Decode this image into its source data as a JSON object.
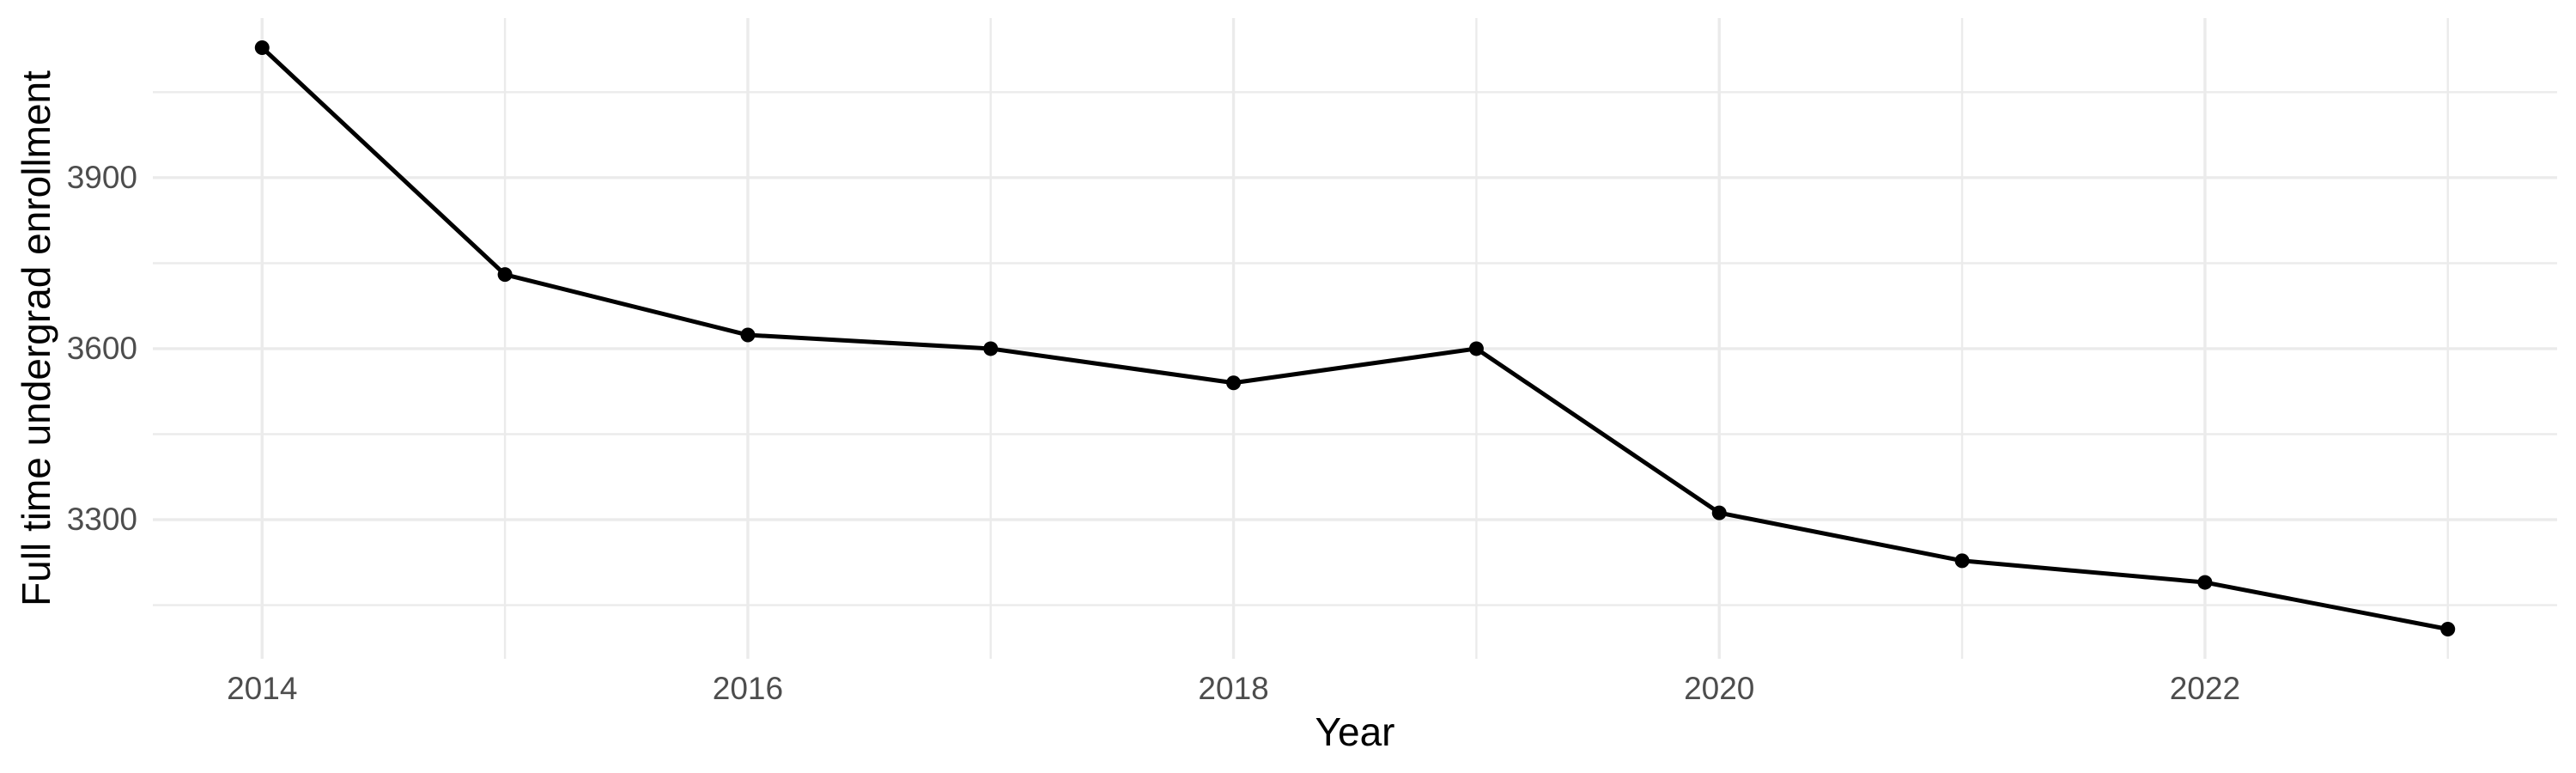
{
  "figure": {
    "background": "#FFFFFF"
  },
  "chart_data": {
    "type": "line",
    "title": "",
    "xlabel": "Year",
    "ylabel": "Full time undergrad enrollment",
    "x": [
      2014,
      2015,
      2016,
      2017,
      2018,
      2019,
      2020,
      2021,
      2022,
      2023
    ],
    "values": [
      4128,
      3730,
      3624,
      3600,
      3540,
      3600,
      3312,
      3228,
      3190,
      3108
    ],
    "series_name": "Full time undergrad enrollment",
    "xlim": [
      2013.55,
      2023.45
    ],
    "ylim": [
      3056,
      4180
    ],
    "x_major_ticks": [
      2014,
      2016,
      2018,
      2020,
      2022
    ],
    "x_major_tick_labels": [
      "2014",
      "2016",
      "2018",
      "2020",
      "2022"
    ],
    "x_minor_ticks": [
      2015,
      2017,
      2019,
      2021,
      2023
    ],
    "y_major_ticks": [
      3300,
      3600,
      3900
    ],
    "y_major_tick_labels": [
      "3300",
      "3600",
      "3900"
    ],
    "y_minor_ticks": [
      3150,
      3450,
      3750,
      4050
    ],
    "grid": true,
    "legend_position": "none",
    "line_color": "#000000",
    "point_color": "#000000",
    "grid_color": "#EBEBEB",
    "tick_label_color": "#4D4D4D",
    "axis_title_color": "#000000"
  }
}
